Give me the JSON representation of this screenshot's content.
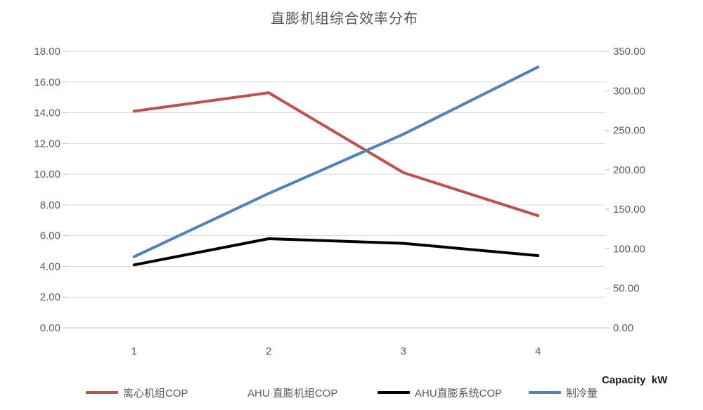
{
  "chart_data": {
    "type": "line",
    "title": "直膨机组综合效率分布",
    "categories": [
      "1",
      "2",
      "3",
      "4"
    ],
    "series": [
      {
        "name": "离心机组COP",
        "axis": "left",
        "color": "#C0504D",
        "values": [
          14.1,
          15.3,
          10.1,
          7.3
        ]
      },
      {
        "name": "AHU 直膨机组COP",
        "axis": "left",
        "color": null,
        "values": [],
        "note": "legend entry only, no visible line in plot"
      },
      {
        "name": "AHU直膨系统COP",
        "axis": "left",
        "color": "#000000",
        "values": [
          4.1,
          5.8,
          5.5,
          4.7
        ]
      },
      {
        "name": "制冷量",
        "axis": "right",
        "color": "#4F81BD",
        "values": [
          90,
          170,
          245,
          330
        ]
      }
    ],
    "left_axis": {
      "min": 0,
      "max": 18,
      "step": 2,
      "tick_labels": [
        "0.00",
        "2.00",
        "4.00",
        "6.00",
        "8.00",
        "10.00",
        "12.00",
        "14.00",
        "16.00",
        "18.00"
      ]
    },
    "right_axis": {
      "min": 0,
      "max": 350,
      "step": 50,
      "tick_labels": [
        "0.00",
        "50.00",
        "100.00",
        "150.00",
        "200.00",
        "250.00",
        "300.00",
        "350.00"
      ],
      "title": "Capacity  kW"
    },
    "grid": true,
    "legend_position": "bottom",
    "colors": {
      "grid": "#D9D9D9",
      "axis_line": "#BFBFBF",
      "tick_text": "#595959",
      "title_text": "#555555",
      "axis_title_text": "#1A1A1A"
    }
  }
}
